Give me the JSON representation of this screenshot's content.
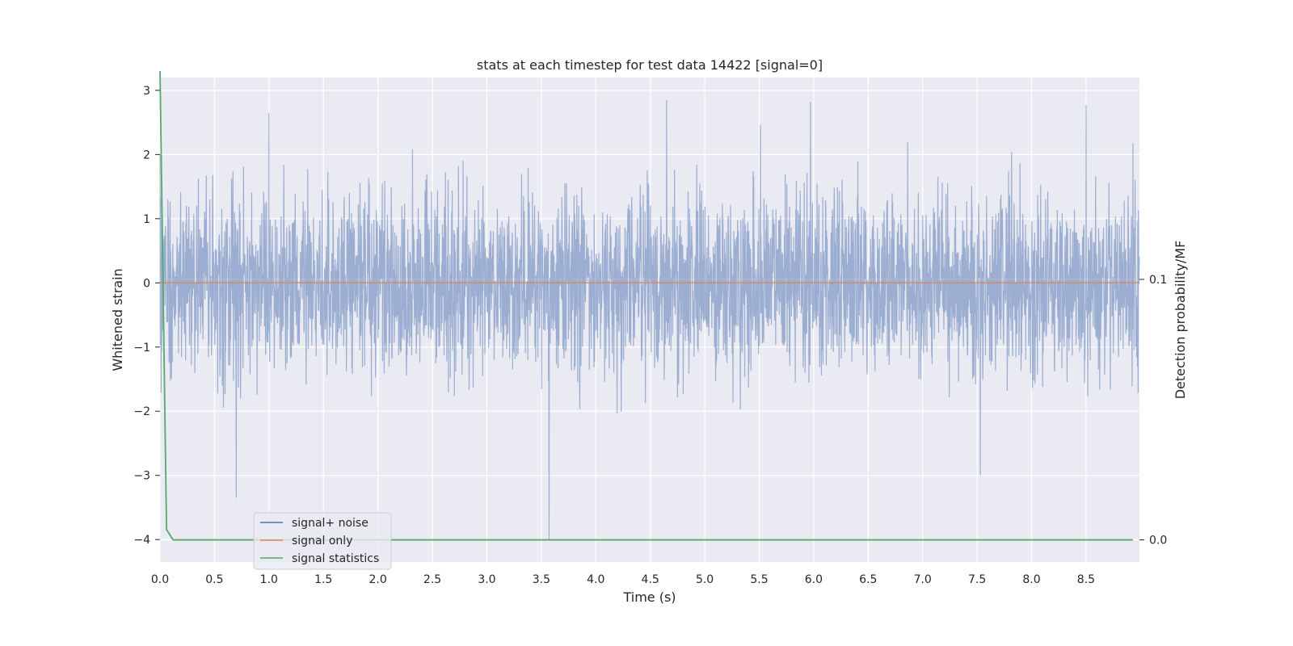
{
  "chart_data": {
    "type": "line",
    "title": "stats at each timestep for test data 14422 [signal=0]",
    "xlabel": "Time (s)",
    "ylabel": "Whitened strain",
    "y2label": "Detection probability/MF",
    "xlim": [
      0.0,
      8.99
    ],
    "ylim": [
      -4.35,
      3.2
    ],
    "y2lim": [
      -0.0085,
      0.1775
    ],
    "xticks": [
      "0.0",
      "0.5",
      "1.0",
      "1.5",
      "2.0",
      "2.5",
      "3.0",
      "3.5",
      "4.0",
      "4.5",
      "5.0",
      "5.5",
      "6.0",
      "6.5",
      "7.0",
      "7.5",
      "8.0",
      "8.5"
    ],
    "yticks": [
      "3",
      "2",
      "1",
      "0",
      "−1",
      "−2",
      "−3",
      "−4"
    ],
    "y2ticks": [
      "0.1",
      "0.0"
    ],
    "grid": true,
    "legend_position": "lower-left",
    "series": [
      {
        "name": "signal+ noise",
        "axis": "left",
        "color": "#4c72b0",
        "style": "dense noise, roughly ±1.3 with spikes",
        "peaks": [
          {
            "x": 0.0,
            "y": 2.0
          },
          {
            "x": 0.7,
            "y": -3.35
          },
          {
            "x": 1.0,
            "y": 2.65
          },
          {
            "x": 3.57,
            "y": -4.0
          },
          {
            "x": 4.65,
            "y": 2.85
          },
          {
            "x": 5.97,
            "y": 2.82
          },
          {
            "x": 7.53,
            "y": -3.0
          },
          {
            "x": 8.5,
            "y": 2.77
          }
        ]
      },
      {
        "name": "signal only",
        "axis": "left",
        "color": "#dd8452",
        "values": [
          0,
          0
        ]
      },
      {
        "name": "signal statistics",
        "axis": "right",
        "color": "#55a868",
        "x": [
          0.0,
          0.06,
          0.12,
          8.93
        ],
        "values": [
          0.18,
          0.004,
          0.0,
          0.0
        ]
      }
    ]
  }
}
